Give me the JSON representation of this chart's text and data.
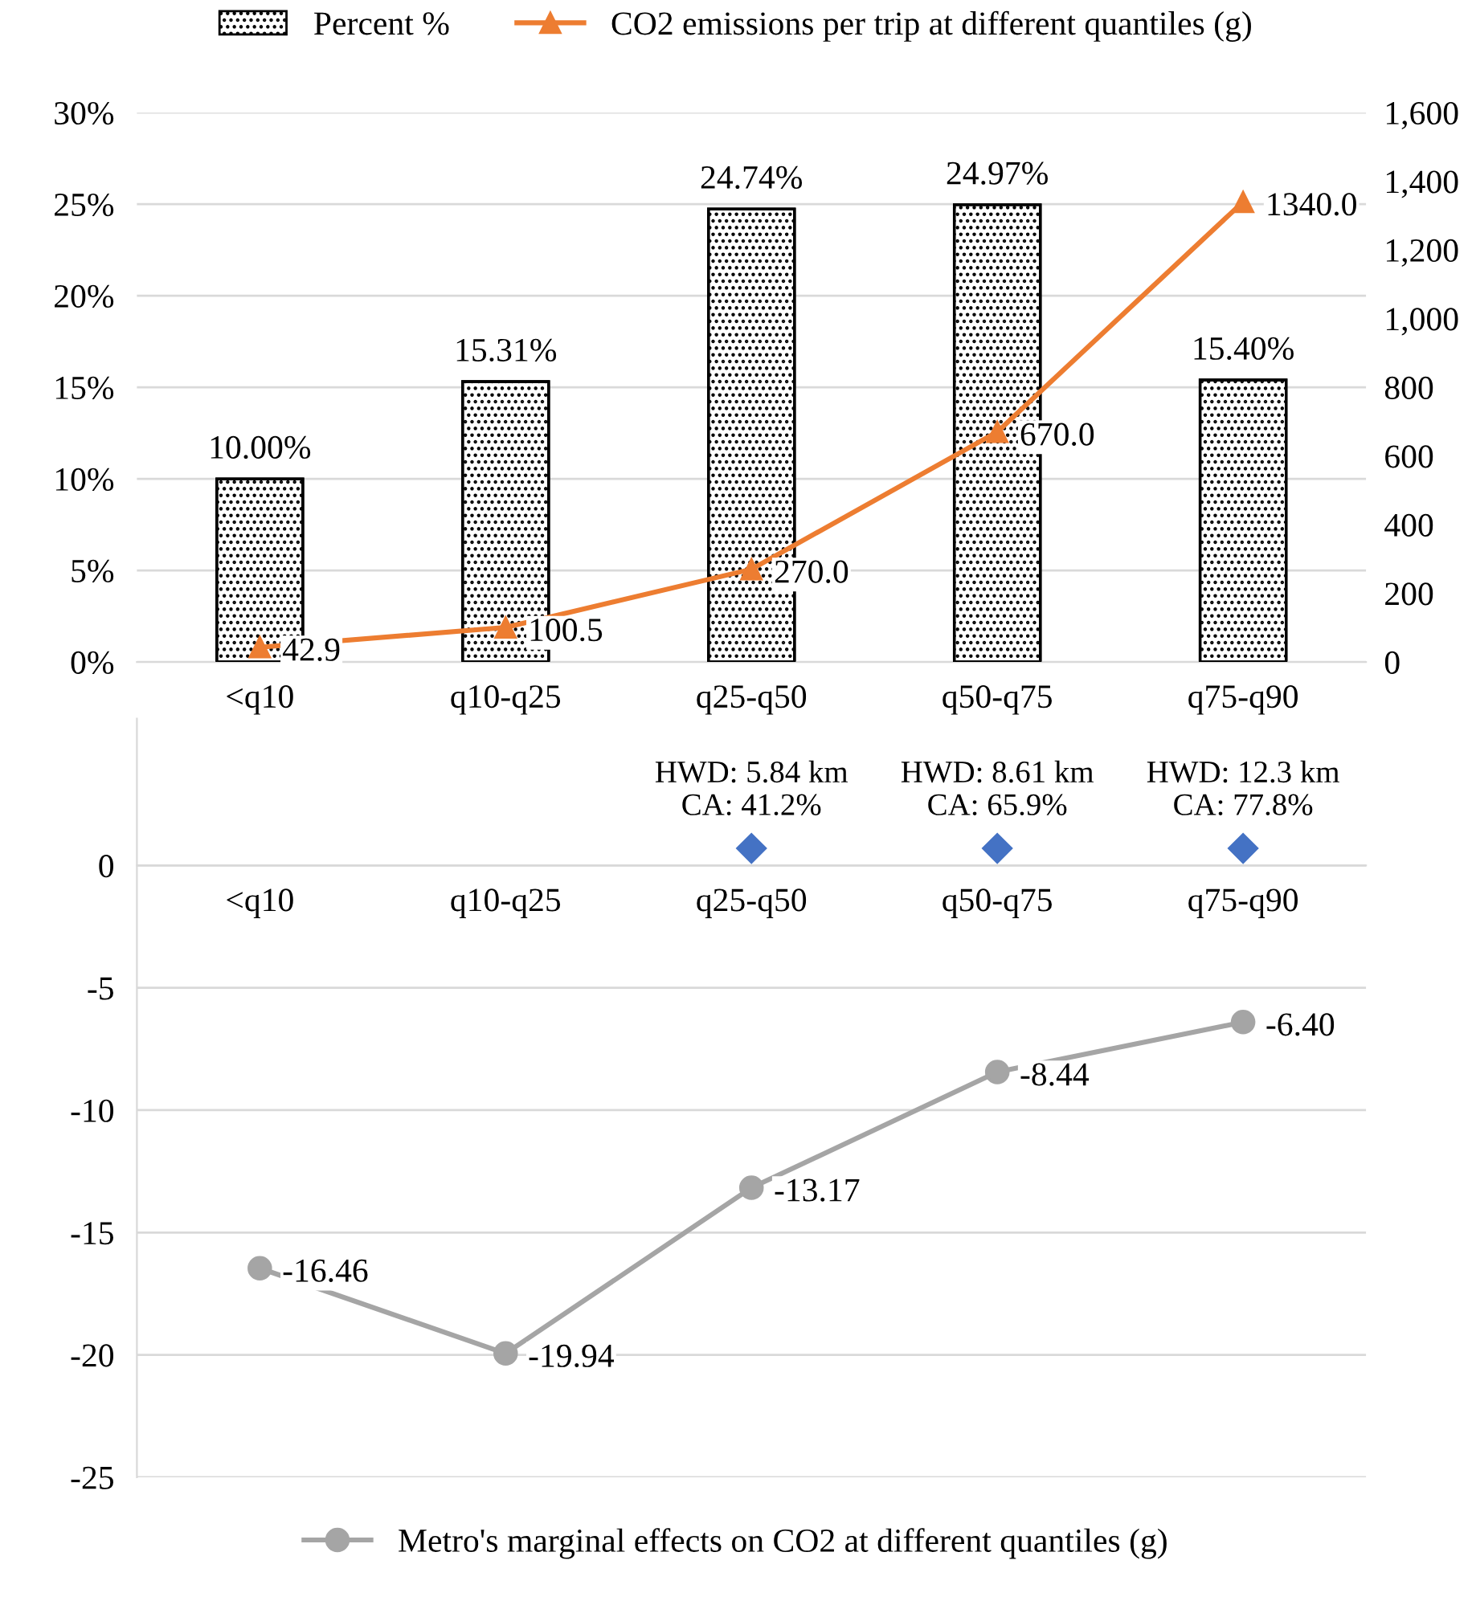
{
  "chart_data": [
    {
      "type": "bar",
      "categories": [
        "<q10",
        "q10-q25",
        "q25-q50",
        "q50-q75",
        "q75-q90"
      ],
      "series": [
        {
          "name": "Percent %",
          "color": "#000000",
          "values": [
            10.0,
            15.31,
            24.74,
            24.97,
            15.4
          ],
          "value_labels": [
            "10.00%",
            "15.31%",
            "24.74%",
            "24.97%",
            "15.40%"
          ]
        },
        {
          "name": "CO2 emissions per trip at different quantiles (g)",
          "type": "line",
          "axis": "y2",
          "color": "#ed7d31",
          "marker": "triangle",
          "values": [
            42.9,
            100.5,
            270.0,
            670.0,
            1340.0
          ],
          "value_labels": [
            "42.9",
            "100.5",
            "270.0",
            "670.0",
            "1340.0"
          ]
        }
      ],
      "ylim": [
        0,
        30
      ],
      "yticks": [
        {
          "value": 0,
          "label": "0%"
        },
        {
          "value": 5,
          "label": "5%"
        },
        {
          "value": 10,
          "label": "10%"
        },
        {
          "value": 15,
          "label": "15%"
        },
        {
          "value": 20,
          "label": "20%"
        },
        {
          "value": 25,
          "label": "25%"
        },
        {
          "value": 30,
          "label": "30%"
        }
      ],
      "y2lim": [
        0,
        1600
      ],
      "y2ticks": [
        0,
        200,
        400,
        600,
        800,
        {
          "value": 1000,
          "label": "1,000"
        },
        {
          "value": 1200,
          "label": "1,200"
        },
        {
          "value": 1400,
          "label": "1,400"
        },
        {
          "value": 1600,
          "label": "1,600"
        }
      ],
      "grid": "y",
      "legend": "top"
    },
    {
      "type": "line",
      "categories": [
        "<q10",
        "q10-q25",
        "q25-q50",
        "q50-q75",
        "q75-q90"
      ],
      "series": [
        {
          "name": "Metro's marginal effects on CO2 at different quantiles (g)",
          "type": "line",
          "color": "#a5a5a5",
          "marker": "circle",
          "values": [
            -16.46,
            -19.94,
            -13.17,
            -8.44,
            -6.4
          ],
          "value_labels": [
            "-16.46",
            "-19.94",
            "-13.17",
            "-8.44",
            "-6.40"
          ]
        },
        {
          "type": "scatter",
          "color": "#4472c4",
          "marker": "diamond",
          "values": [
            null,
            null,
            0.7,
            0.7,
            0.7
          ]
        }
      ],
      "ylim": [
        -25,
        6
      ],
      "yticks": [
        {
          "value": -25,
          "label": "-25"
        },
        {
          "value": -20,
          "label": "-20"
        },
        {
          "value": -15,
          "label": "-15"
        },
        {
          "value": -10,
          "label": "-10"
        },
        {
          "value": -5,
          "label": "-5"
        },
        0
      ],
      "annotations": [
        {
          "text": "HWD: 5.84 km\nCA: 41.2%",
          "x": "q25-q50",
          "y": 0.7
        },
        {
          "text": "HWD: 8.61 km\nCA: 65.9%",
          "x": "q50-q75",
          "y": 0.7
        },
        {
          "text": "HWD: 12.3 km\nCA: 77.8%",
          "x": "q75-q90",
          "y": 0.7
        }
      ],
      "grid": "y",
      "legend": "bottom"
    }
  ]
}
